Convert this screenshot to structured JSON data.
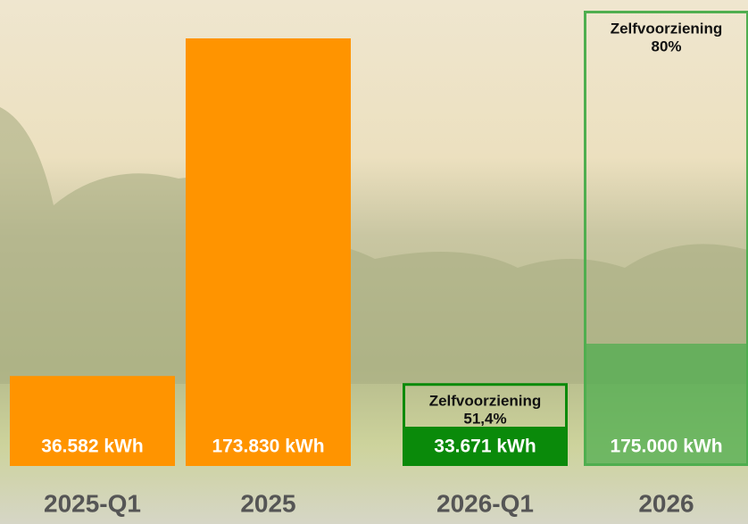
{
  "chart_data": {
    "type": "bar",
    "categories": [
      "2025-Q1",
      "2025",
      "2026-Q1",
      "2026"
    ],
    "values": [
      36582,
      173830,
      33671,
      175000
    ],
    "value_labels": [
      "36.582 kWh",
      "173.830 kWh",
      "33.671 kWh",
      "175.000 kWh"
    ],
    "colors": [
      "#ff9400",
      "#ff9400",
      "#0a8a0a",
      "#4fae4f"
    ],
    "self_sufficiency": {
      "label": "Zelfvoorziening",
      "values": [
        null,
        null,
        51.4,
        80
      ],
      "value_labels": [
        null,
        null,
        "51,4%",
        "80%"
      ]
    }
  }
}
